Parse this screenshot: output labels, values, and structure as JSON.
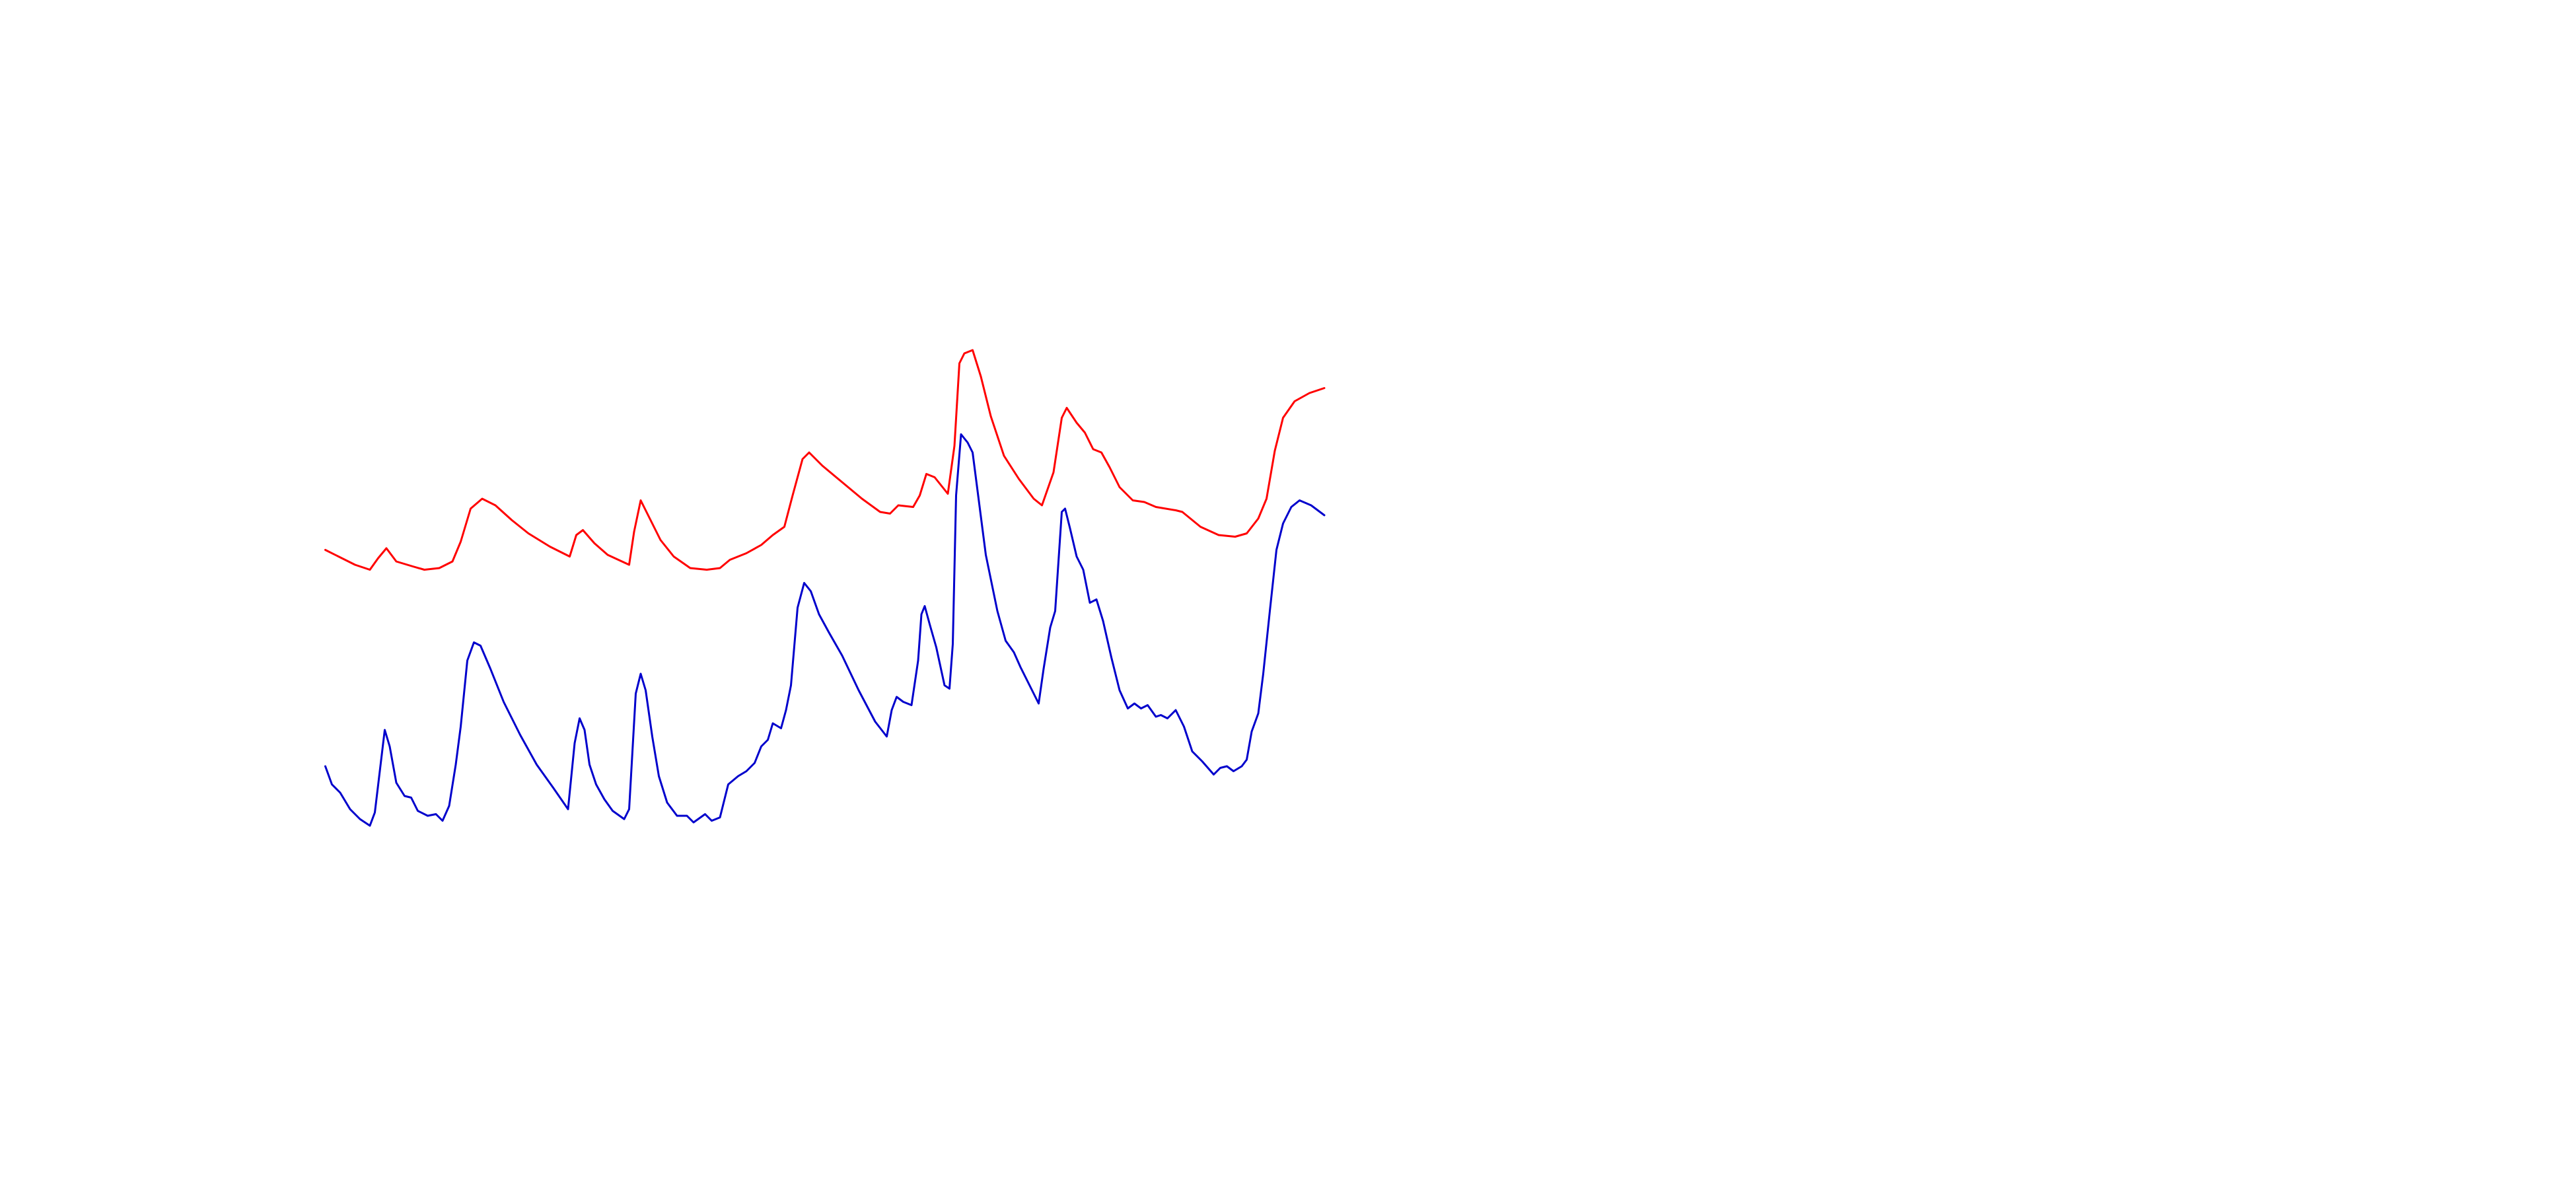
{
  "chart_data": {
    "type": "line",
    "xlim": [
      0,
      605
    ],
    "ylim": [
      0,
      720
    ],
    "series": [
      {
        "color": "#ff0000",
        "x": [
          0,
          8,
          18,
          27,
          32,
          37,
          43,
          53,
          60,
          69,
          77,
          82,
          88,
          95,
          103,
          113,
          123,
          136,
          148,
          152,
          156,
          163,
          171,
          184,
          187,
          191,
          196,
          203,
          211,
          221,
          231,
          239,
          245,
          255,
          264,
          271,
          278,
          283,
          289,
          293,
          301,
          313,
          325,
          336,
          342,
          347,
          356,
          360,
          364,
          369,
          377,
          381,
          384,
          387,
          392,
          397,
          403,
          411,
          420,
          429,
          434,
          441,
          446,
          449,
          455,
          460,
          465,
          470,
          475,
          481,
          489,
          496,
          503,
          515,
          519,
          530,
          541,
          551,
          558,
          565,
          570,
          575,
          580,
          587,
          596,
          605
        ],
        "values": [
          387,
          383,
          378,
          375,
          382,
          388,
          380,
          377,
          375,
          376,
          380,
          392,
          412,
          418,
          414,
          405,
          397,
          389,
          383,
          396,
          399,
          391,
          384,
          378,
          398,
          417,
          407,
          393,
          383,
          376,
          375,
          376,
          381,
          385,
          390,
          396,
          401,
          420,
          442,
          446,
          438,
          428,
          418,
          410,
          409,
          414,
          413,
          420,
          433,
          431,
          421,
          450,
          500,
          506,
          508,
          492,
          468,
          444,
          430,
          418,
          414,
          434,
          467,
          473,
          464,
          458,
          448,
          446,
          437,
          425,
          417,
          416,
          413,
          411,
          410,
          401,
          396,
          395,
          397,
          406,
          418,
          447,
          467,
          477,
          482,
          485
        ]
      },
      {
        "color": "#0000cc",
        "x": [
          0,
          4,
          9,
          15,
          21,
          27,
          30,
          36,
          39,
          43,
          48,
          52,
          56,
          62,
          67,
          71,
          75,
          79,
          82,
          86,
          90,
          94,
          100,
          108,
          118,
          128,
          138,
          147,
          151,
          154,
          157,
          160,
          164,
          169,
          174,
          181,
          184,
          188,
          191,
          194,
          198,
          202,
          207,
          213,
          219,
          223,
          230,
          234,
          239,
          244,
          250,
          255,
          260,
          264,
          268,
          271,
          276,
          279,
          282,
          286,
          290,
          294,
          299,
          305,
          313,
          323,
          333,
          340,
          343,
          346,
          350,
          355,
          359,
          361,
          363,
          366,
          370,
          375,
          378,
          380,
          382,
          385,
          389,
          392,
          396,
          400,
          407,
          412,
          417,
          421,
          428,
          432,
          435,
          439,
          442,
          446,
          448,
          451,
          455,
          459,
          463,
          467,
          471,
          476,
          481,
          486,
          490,
          494,
          498,
          503,
          506,
          510,
          515,
          520,
          525,
          531,
          538,
          542,
          546,
          550,
          555,
          558,
          561,
          565,
          568,
          572,
          576,
          580,
          585,
          590,
          597,
          605
        ],
        "values": [
          256,
          245,
          240,
          230,
          224,
          220,
          228,
          278,
          268,
          246,
          238,
          237,
          229,
          226,
          227,
          223,
          232,
          257,
          280,
          320,
          331,
          329,
          315,
          295,
          275,
          257,
          243,
          230,
          270,
          285,
          278,
          257,
          245,
          236,
          229,
          224,
          230,
          300,
          312,
          302,
          274,
          250,
          234,
          226,
          226,
          222,
          227,
          223,
          225,
          245,
          250,
          253,
          258,
          268,
          272,
          282,
          279,
          290,
          305,
          352,
          367,
          362,
          348,
          337,
          323,
          302,
          283,
          274,
          290,
          298,
          295,
          293,
          320,
          348,
          353,
          342,
          328,
          305,
          303,
          330,
          420,
          457,
          452,
          446,
          415,
          384,
          350,
          332,
          325,
          316,
          302,
          294,
          315,
          340,
          350,
          410,
          412,
          400,
          383,
          375,
          355,
          357,
          344,
          322,
          302,
          291,
          294,
          291,
          293,
          286,
          287,
          285,
          290,
          280,
          265,
          259,
          251,
          255,
          256,
          253,
          256,
          260,
          277,
          288,
          312,
          350,
          387,
          403,
          413,
          417,
          414,
          408
        ]
      }
    ]
  }
}
